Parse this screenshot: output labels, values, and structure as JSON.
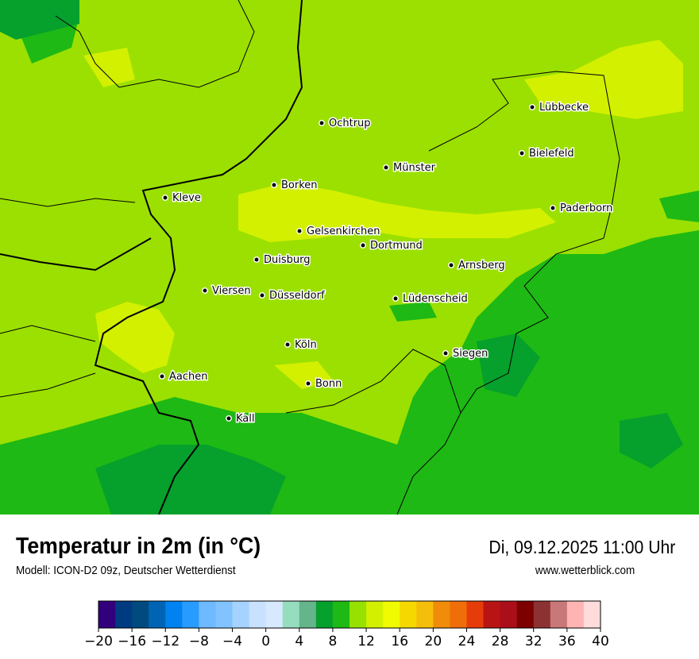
{
  "header": {
    "title": "Temperatur in 2m (in °C)",
    "subtitle": "Modell: ICON-D2 09z, Deutscher Wetterdienst",
    "datetime": "Di, 09.12.2025 11:00 Uhr",
    "website": "www.wetterblick.com"
  },
  "map": {
    "cities": [
      "Lübbecke",
      "Ochtrup",
      "Bielefeld",
      "Münster",
      "Borken",
      "Kleve",
      "Paderborn",
      "Gelsenkirchen",
      "Dortmund",
      "Duisburg",
      "Arnsberg",
      "Viersen",
      "Düsseldorf",
      "Lüdenscheid",
      "Köln",
      "Siegen",
      "Aachen",
      "Bonn",
      "Kall"
    ],
    "dominant_colors": {
      "base": "#9be000",
      "warm": "#d2f000",
      "cool": "#1eb914",
      "coolest": "#06a02d"
    }
  },
  "legend": {
    "unit": "°C",
    "min": -20,
    "max": 40,
    "step": 2,
    "colors": [
      "#32007d",
      "#003a80",
      "#004a80",
      "#0064b4",
      "#0082f0",
      "#289bff",
      "#6eb9ff",
      "#82c3ff",
      "#a5d2ff",
      "#c8e1ff",
      "#d7e9ff",
      "#96dcbe",
      "#64b48c",
      "#06a02d",
      "#1eb914",
      "#96e100",
      "#d2f000",
      "#f0fa00",
      "#f5d800",
      "#f5be0a",
      "#f08c0a",
      "#f06e0a",
      "#e63c0a",
      "#b91414",
      "#aa0f19",
      "#7d0000",
      "#8c3232",
      "#c87878",
      "#ffb4b4",
      "#ffdcdc"
    ],
    "tick_labels": [
      "−20",
      "−16",
      "−12",
      "−8",
      "−4",
      "0",
      "4",
      "8",
      "12",
      "16",
      "20",
      "24",
      "28",
      "32",
      "36",
      "40"
    ]
  }
}
